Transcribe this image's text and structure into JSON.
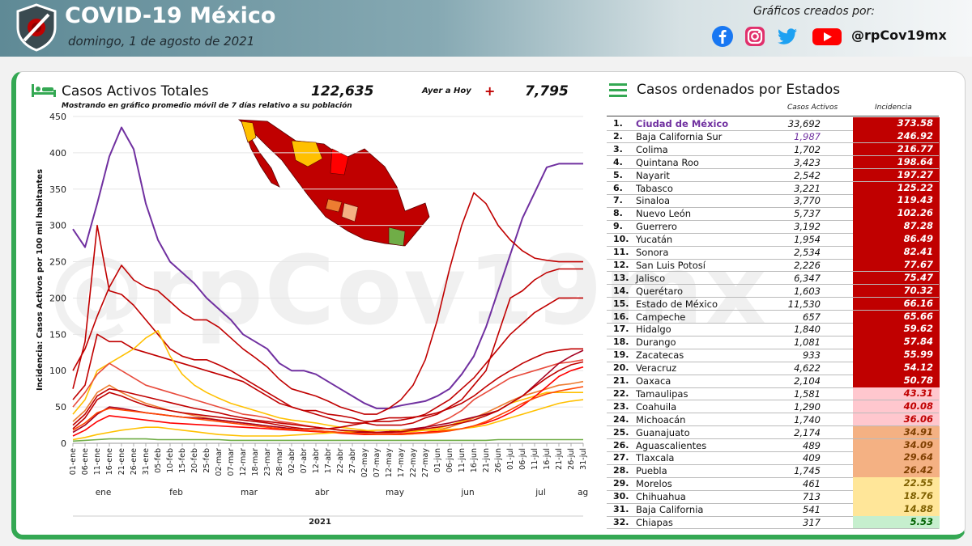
{
  "header": {
    "title": "COVID-19 México",
    "date": "domingo, 1 de agosto de 2021",
    "credits": "Gráficos creados por:",
    "handle": "@rpCov19mx",
    "social_icons": [
      "facebook-icon",
      "instagram-icon",
      "twitter-icon",
      "youtube-icon"
    ],
    "colors": {
      "facebook": "#1877f2",
      "instagram": "#e1306c",
      "twitter": "#1da1f2",
      "youtube": "#ff0000",
      "accent_green": "#34a853"
    }
  },
  "chart_panel": {
    "title": "Casos Activos Totales",
    "total": "122,635",
    "ayer_label": "Ayer a Hoy",
    "plus": "+",
    "delta": "7,795",
    "note": "Mostrando en gráfico promedio móvil de 7 días relativo a su población",
    "watermark": "@rpCov19mx"
  },
  "chart_data": {
    "type": "line",
    "ylabel": "Incidencia: Casos Activos por 100 mil habitantes",
    "ylim": [
      0,
      450
    ],
    "yticks": [
      0,
      50,
      100,
      150,
      200,
      250,
      300,
      350,
      400,
      450
    ],
    "xticks": [
      "01-ene",
      "06-ene",
      "11-ene",
      "16-ene",
      "21-ene",
      "26-ene",
      "31-ene",
      "05-feb",
      "10-feb",
      "15-feb",
      "20-feb",
      "25-feb",
      "02-mar",
      "07-mar",
      "12-mar",
      "18-mar",
      "23-mar",
      "28-mar",
      "02-abr",
      "07-abr",
      "12-abr",
      "17-abr",
      "22-abr",
      "27-abr",
      "02-may",
      "07-may",
      "12-may",
      "17-may",
      "22-may",
      "27-may",
      "01-jun",
      "06-jun",
      "11-jun",
      "16-jun",
      "21-jun",
      "26-jun",
      "01-jul",
      "06-jul",
      "11-jul",
      "16-jul",
      "21-jul",
      "26-jul",
      "31-jul"
    ],
    "months": [
      {
        "label": "ene",
        "tick": 2.5
      },
      {
        "label": "feb",
        "tick": 8.5
      },
      {
        "label": "mar",
        "tick": 14.5
      },
      {
        "label": "abr",
        "tick": 20.5
      },
      {
        "label": "may",
        "tick": 26.5
      },
      {
        "label": "jun",
        "tick": 32.5
      },
      {
        "label": "jul",
        "tick": 38.5
      },
      {
        "label": "ag o",
        "tick": 42.3
      }
    ],
    "year": "2021",
    "series": [
      {
        "color": "#7030a0",
        "values": [
          295,
          270,
          330,
          395,
          435,
          405,
          330,
          280,
          250,
          235,
          220,
          200,
          185,
          170,
          150,
          140,
          130,
          110,
          100,
          100,
          95,
          85,
          75,
          65,
          55,
          48,
          48,
          52,
          55,
          58,
          65,
          75,
          95,
          120,
          160,
          210,
          260,
          310,
          345,
          380,
          385,
          385,
          385
        ]
      },
      {
        "color": "#c00000",
        "values": [
          100,
          130,
          175,
          215,
          245,
          225,
          215,
          210,
          195,
          180,
          170,
          170,
          160,
          145,
          130,
          118,
          105,
          88,
          75,
          70,
          65,
          58,
          50,
          45,
          40,
          40,
          48,
          60,
          80,
          115,
          170,
          240,
          300,
          345,
          330,
          300,
          280,
          265,
          255,
          252,
          250,
          250,
          250
        ]
      },
      {
        "color": "#c00000",
        "values": [
          75,
          140,
          300,
          210,
          205,
          190,
          170,
          150,
          130,
          120,
          115,
          115,
          108,
          100,
          90,
          80,
          70,
          60,
          50,
          45,
          40,
          35,
          30,
          28,
          28,
          25,
          25,
          25,
          28,
          35,
          40,
          50,
          60,
          80,
          100,
          150,
          200,
          210,
          225,
          235,
          240,
          240,
          240
        ]
      },
      {
        "color": "#c00000",
        "values": [
          60,
          80,
          150,
          140,
          140,
          130,
          125,
          120,
          115,
          110,
          105,
          100,
          95,
          90,
          85,
          75,
          65,
          55,
          50,
          45,
          45,
          40,
          38,
          35,
          30,
          30,
          30,
          32,
          35,
          40,
          50,
          60,
          75,
          90,
          110,
          130,
          150,
          165,
          180,
          190,
          200,
          200,
          200
        ]
      },
      {
        "color": "#ffc000",
        "values": [
          40,
          60,
          100,
          110,
          120,
          130,
          145,
          155,
          120,
          95,
          80,
          70,
          62,
          55,
          50,
          45,
          40,
          35,
          32,
          30,
          28,
          25,
          22,
          20,
          18,
          15,
          15,
          15,
          16,
          18,
          20,
          25,
          30,
          35,
          40,
          45,
          55,
          60,
          65,
          70,
          70,
          70,
          70
        ]
      },
      {
        "color": "#e84c3d",
        "values": [
          50,
          70,
          95,
          110,
          100,
          90,
          80,
          75,
          70,
          65,
          60,
          55,
          50,
          45,
          40,
          38,
          35,
          30,
          28,
          25,
          22,
          20,
          18,
          16,
          15,
          14,
          14,
          15,
          18,
          22,
          28,
          35,
          45,
          60,
          70,
          80,
          90,
          95,
          100,
          105,
          110,
          112,
          115
        ]
      },
      {
        "color": "#ed7d31",
        "values": [
          30,
          45,
          70,
          80,
          70,
          62,
          55,
          50,
          45,
          42,
          38,
          35,
          32,
          30,
          28,
          26,
          24,
          22,
          20,
          18,
          17,
          16,
          15,
          14,
          13,
          12,
          12,
          12,
          13,
          15,
          18,
          22,
          28,
          35,
          42,
          50,
          58,
          65,
          70,
          75,
          80,
          82,
          85
        ]
      },
      {
        "color": "#c00000",
        "values": [
          20,
          35,
          60,
          70,
          65,
          58,
          52,
          48,
          45,
          42,
          40,
          38,
          36,
          34,
          32,
          30,
          28,
          25,
          22,
          20,
          20,
          20,
          22,
          25,
          28,
          32,
          35,
          35,
          36,
          38,
          42,
          48,
          55,
          65,
          78,
          90,
          100,
          110,
          118,
          125,
          128,
          130,
          130
        ]
      },
      {
        "color": "#a50021",
        "values": [
          15,
          25,
          40,
          50,
          48,
          45,
          42,
          40,
          38,
          36,
          35,
          34,
          32,
          30,
          28,
          26,
          24,
          22,
          20,
          18,
          17,
          16,
          15,
          15,
          15,
          15,
          16,
          18,
          20,
          22,
          25,
          28,
          32,
          36,
          40,
          45,
          55,
          65,
          80,
          95,
          110,
          120,
          128
        ]
      },
      {
        "color": "#ff0000",
        "values": [
          10,
          18,
          30,
          38,
          36,
          34,
          32,
          30,
          28,
          27,
          26,
          25,
          24,
          23,
          22,
          21,
          20,
          19,
          18,
          17,
          16,
          15,
          14,
          13,
          12,
          12,
          12,
          13,
          14,
          15,
          16,
          18,
          20,
          24,
          28,
          34,
          42,
          52,
          64,
          78,
          92,
          100,
          105
        ]
      },
      {
        "color": "#ffc000",
        "values": [
          5,
          8,
          12,
          15,
          18,
          20,
          22,
          22,
          20,
          18,
          16,
          14,
          12,
          11,
          10,
          10,
          10,
          10,
          11,
          12,
          13,
          14,
          15,
          16,
          17,
          18,
          18,
          18,
          18,
          18,
          18,
          19,
          20,
          22,
          25,
          30,
          35,
          40,
          45,
          50,
          55,
          58,
          60
        ]
      },
      {
        "color": "#70ad47",
        "values": [
          3,
          4,
          5,
          6,
          6,
          6,
          6,
          5,
          5,
          5,
          5,
          5,
          5,
          4,
          4,
          4,
          4,
          4,
          4,
          4,
          4,
          4,
          4,
          4,
          4,
          4,
          4,
          4,
          4,
          4,
          4,
          4,
          4,
          4,
          4,
          5,
          5,
          5,
          5,
          5,
          5,
          5,
          5
        ]
      },
      {
        "color": "#c00000",
        "values": [
          25,
          40,
          65,
          75,
          72,
          68,
          64,
          60,
          56,
          52,
          48,
          45,
          42,
          38,
          35,
          32,
          30,
          28,
          26,
          24,
          22,
          20,
          18,
          17,
          16,
          15,
          15,
          16,
          18,
          20,
          22,
          25,
          28,
          32,
          38,
          45,
          55,
          65,
          78,
          90,
          100,
          108,
          112
        ]
      },
      {
        "color": "#ff4500",
        "values": [
          18,
          28,
          42,
          48,
          46,
          44,
          42,
          40,
          38,
          36,
          34,
          32,
          30,
          28,
          26,
          24,
          22,
          20,
          19,
          18,
          17,
          16,
          15,
          14,
          13,
          12,
          12,
          12,
          13,
          14,
          15,
          17,
          20,
          24,
          30,
          38,
          46,
          55,
          62,
          68,
          72,
          75,
          78
        ]
      }
    ]
  },
  "table": {
    "title": "Casos ordenados por Estados",
    "col_cases": "Casos Activos",
    "col_inc": "Incidencia",
    "rows": [
      {
        "rank": "1.",
        "state": "Ciudad de México",
        "cases": "33,692",
        "inc": "373.58",
        "bg": "#c00000",
        "fg": "#ffffff"
      },
      {
        "rank": "2.",
        "state": "Baja California Sur",
        "cases": "1,987",
        "inc": "246.92",
        "bg": "#c00000",
        "fg": "#ffffff"
      },
      {
        "rank": "3.",
        "state": "Colima",
        "cases": "1,702",
        "inc": "216.77",
        "bg": "#c00000",
        "fg": "#ffffff"
      },
      {
        "rank": "4.",
        "state": "Quintana Roo",
        "cases": "3,423",
        "inc": "198.64",
        "bg": "#c00000",
        "fg": "#ffffff"
      },
      {
        "rank": "5.",
        "state": "Nayarit",
        "cases": "2,542",
        "inc": "197.27",
        "bg": "#c00000",
        "fg": "#ffffff"
      },
      {
        "rank": "6.",
        "state": "Tabasco",
        "cases": "3,221",
        "inc": "125.22",
        "bg": "#c00000",
        "fg": "#ffffff"
      },
      {
        "rank": "7.",
        "state": "Sinaloa",
        "cases": "3,770",
        "inc": "119.43",
        "bg": "#c00000",
        "fg": "#ffffff"
      },
      {
        "rank": "8.",
        "state": "Nuevo León",
        "cases": "5,737",
        "inc": "102.26",
        "bg": "#c00000",
        "fg": "#ffffff"
      },
      {
        "rank": "9.",
        "state": "Guerrero",
        "cases": "3,192",
        "inc": "87.28",
        "bg": "#c00000",
        "fg": "#ffffff"
      },
      {
        "rank": "10.",
        "state": "Yucatán",
        "cases": "1,954",
        "inc": "86.49",
        "bg": "#c00000",
        "fg": "#ffffff"
      },
      {
        "rank": "11.",
        "state": "Sonora",
        "cases": "2,534",
        "inc": "82.41",
        "bg": "#c00000",
        "fg": "#ffffff"
      },
      {
        "rank": "12.",
        "state": "San Luis Potosí",
        "cases": "2,226",
        "inc": "77.67",
        "bg": "#c00000",
        "fg": "#ffffff"
      },
      {
        "rank": "13.",
        "state": "Jalisco",
        "cases": "6,347",
        "inc": "75.47",
        "bg": "#c00000",
        "fg": "#ffffff"
      },
      {
        "rank": "14.",
        "state": "Querétaro",
        "cases": "1,603",
        "inc": "70.32",
        "bg": "#c00000",
        "fg": "#ffffff"
      },
      {
        "rank": "15.",
        "state": "Estado de México",
        "cases": "11,530",
        "inc": "66.16",
        "bg": "#c00000",
        "fg": "#ffffff"
      },
      {
        "rank": "16.",
        "state": "Campeche",
        "cases": "657",
        "inc": "65.66",
        "bg": "#c00000",
        "fg": "#ffffff"
      },
      {
        "rank": "17.",
        "state": "Hidalgo",
        "cases": "1,840",
        "inc": "59.62",
        "bg": "#c00000",
        "fg": "#ffffff"
      },
      {
        "rank": "18.",
        "state": "Durango",
        "cases": "1,081",
        "inc": "57.84",
        "bg": "#c00000",
        "fg": "#ffffff"
      },
      {
        "rank": "19.",
        "state": "Zacatecas",
        "cases": "933",
        "inc": "55.99",
        "bg": "#c00000",
        "fg": "#ffffff"
      },
      {
        "rank": "20.",
        "state": "Veracruz",
        "cases": "4,622",
        "inc": "54.12",
        "bg": "#c00000",
        "fg": "#ffffff"
      },
      {
        "rank": "21.",
        "state": "Oaxaca",
        "cases": "2,104",
        "inc": "50.78",
        "bg": "#c00000",
        "fg": "#ffffff"
      },
      {
        "rank": "22.",
        "state": "Tamaulipas",
        "cases": "1,581",
        "inc": "43.31",
        "bg": "#ffc7ce",
        "fg": "#c00000"
      },
      {
        "rank": "23.",
        "state": "Coahuila",
        "cases": "1,290",
        "inc": "40.08",
        "bg": "#ffc7ce",
        "fg": "#c00000"
      },
      {
        "rank": "24.",
        "state": "Michoacán",
        "cases": "1,740",
        "inc": "36.06",
        "bg": "#ffc7ce",
        "fg": "#c00000"
      },
      {
        "rank": "25.",
        "state": "Guanajuato",
        "cases": "2,174",
        "inc": "34.91",
        "bg": "#f4b183",
        "fg": "#7f3f00"
      },
      {
        "rank": "26.",
        "state": "Aguascalientes",
        "cases": "489",
        "inc": "34.09",
        "bg": "#f4b183",
        "fg": "#7f3f00"
      },
      {
        "rank": "27.",
        "state": "Tlaxcala",
        "cases": "409",
        "inc": "29.64",
        "bg": "#f4b183",
        "fg": "#7f3f00"
      },
      {
        "rank": "28.",
        "state": "Puebla",
        "cases": "1,745",
        "inc": "26.42",
        "bg": "#f4b183",
        "fg": "#7f3f00"
      },
      {
        "rank": "29.",
        "state": "Morelos",
        "cases": "461",
        "inc": "22.55",
        "bg": "#ffe699",
        "fg": "#7f6000"
      },
      {
        "rank": "30.",
        "state": "Chihuahua",
        "cases": "713",
        "inc": "18.76",
        "bg": "#ffe699",
        "fg": "#7f6000"
      },
      {
        "rank": "31.",
        "state": "Baja California",
        "cases": "541",
        "inc": "14.88",
        "bg": "#ffe699",
        "fg": "#7f6000"
      },
      {
        "rank": "32.",
        "state": "Chiapas",
        "cases": "317",
        "inc": "5.53",
        "bg": "#c6efce",
        "fg": "#006100"
      }
    ]
  }
}
